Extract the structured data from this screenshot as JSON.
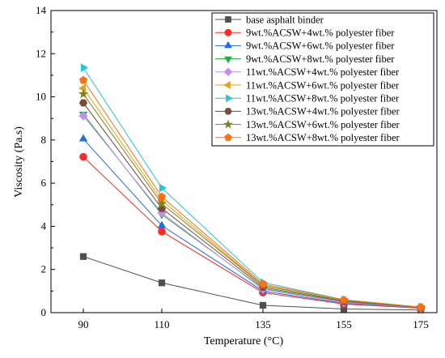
{
  "chart_data": {
    "type": "line",
    "title": "",
    "xlabel": "Temperature (°C)",
    "ylabel": "Viscosity (Pa.s)",
    "categories": [
      "90",
      "110",
      "135",
      "155",
      "175"
    ],
    "ylim": [
      0,
      14
    ],
    "yticks": [
      "0",
      "2",
      "4",
      "6",
      "8",
      "10",
      "12",
      "14"
    ],
    "grid": false,
    "legend_position": "top-right",
    "series": [
      {
        "name": "base asphalt binder",
        "color": "#505050",
        "marker": "square",
        "values": [
          2.6,
          1.38,
          0.34,
          0.17,
          0.12
        ]
      },
      {
        "name": "9wt.%ACSW+4wt.% polyester fiber",
        "color": "#ff2a2a",
        "marker": "circle",
        "values": [
          7.22,
          3.76,
          0.93,
          0.4,
          0.2
        ]
      },
      {
        "name": "9wt.%ACSW+6wt.% polyester fiber",
        "color": "#1f6fe0",
        "marker": "triangle-up",
        "values": [
          8.05,
          4.03,
          1.0,
          0.43,
          0.21
        ]
      },
      {
        "name": "9wt.%ACSW+8wt.% polyester fiber",
        "color": "#18b040",
        "marker": "triangle-down",
        "values": [
          9.2,
          4.55,
          1.12,
          0.48,
          0.22
        ]
      },
      {
        "name": "11wt.%ACSW+4wt.% polyester fiber",
        "color": "#c58ef0",
        "marker": "diamond",
        "values": [
          9.12,
          4.62,
          1.08,
          0.47,
          0.22
        ]
      },
      {
        "name": "11wt.%ACSW+6wt.% polyester fiber",
        "color": "#e8a010",
        "marker": "triangle-left",
        "values": [
          10.4,
          5.2,
          1.27,
          0.55,
          0.24
        ]
      },
      {
        "name": "11wt.%ACSW+8wt.% polyester fiber",
        "color": "#20c8d8",
        "marker": "triangle-right",
        "values": [
          11.35,
          5.78,
          1.4,
          0.6,
          0.26
        ]
      },
      {
        "name": "13wt.%ACSW+4wt.% polyester fiber",
        "color": "#7a4a3a",
        "marker": "hexagon",
        "values": [
          9.72,
          4.83,
          1.18,
          0.52,
          0.23
        ]
      },
      {
        "name": "13wt.%ACSW+6wt.% polyester fiber",
        "color": "#808020",
        "marker": "star",
        "values": [
          10.13,
          5.05,
          1.25,
          0.55,
          0.24
        ]
      },
      {
        "name": "13wt.%ACSW+8wt.% polyester fiber",
        "color": "#ff7010",
        "marker": "pentagon",
        "values": [
          10.77,
          5.37,
          1.33,
          0.59,
          0.25
        ]
      }
    ]
  }
}
